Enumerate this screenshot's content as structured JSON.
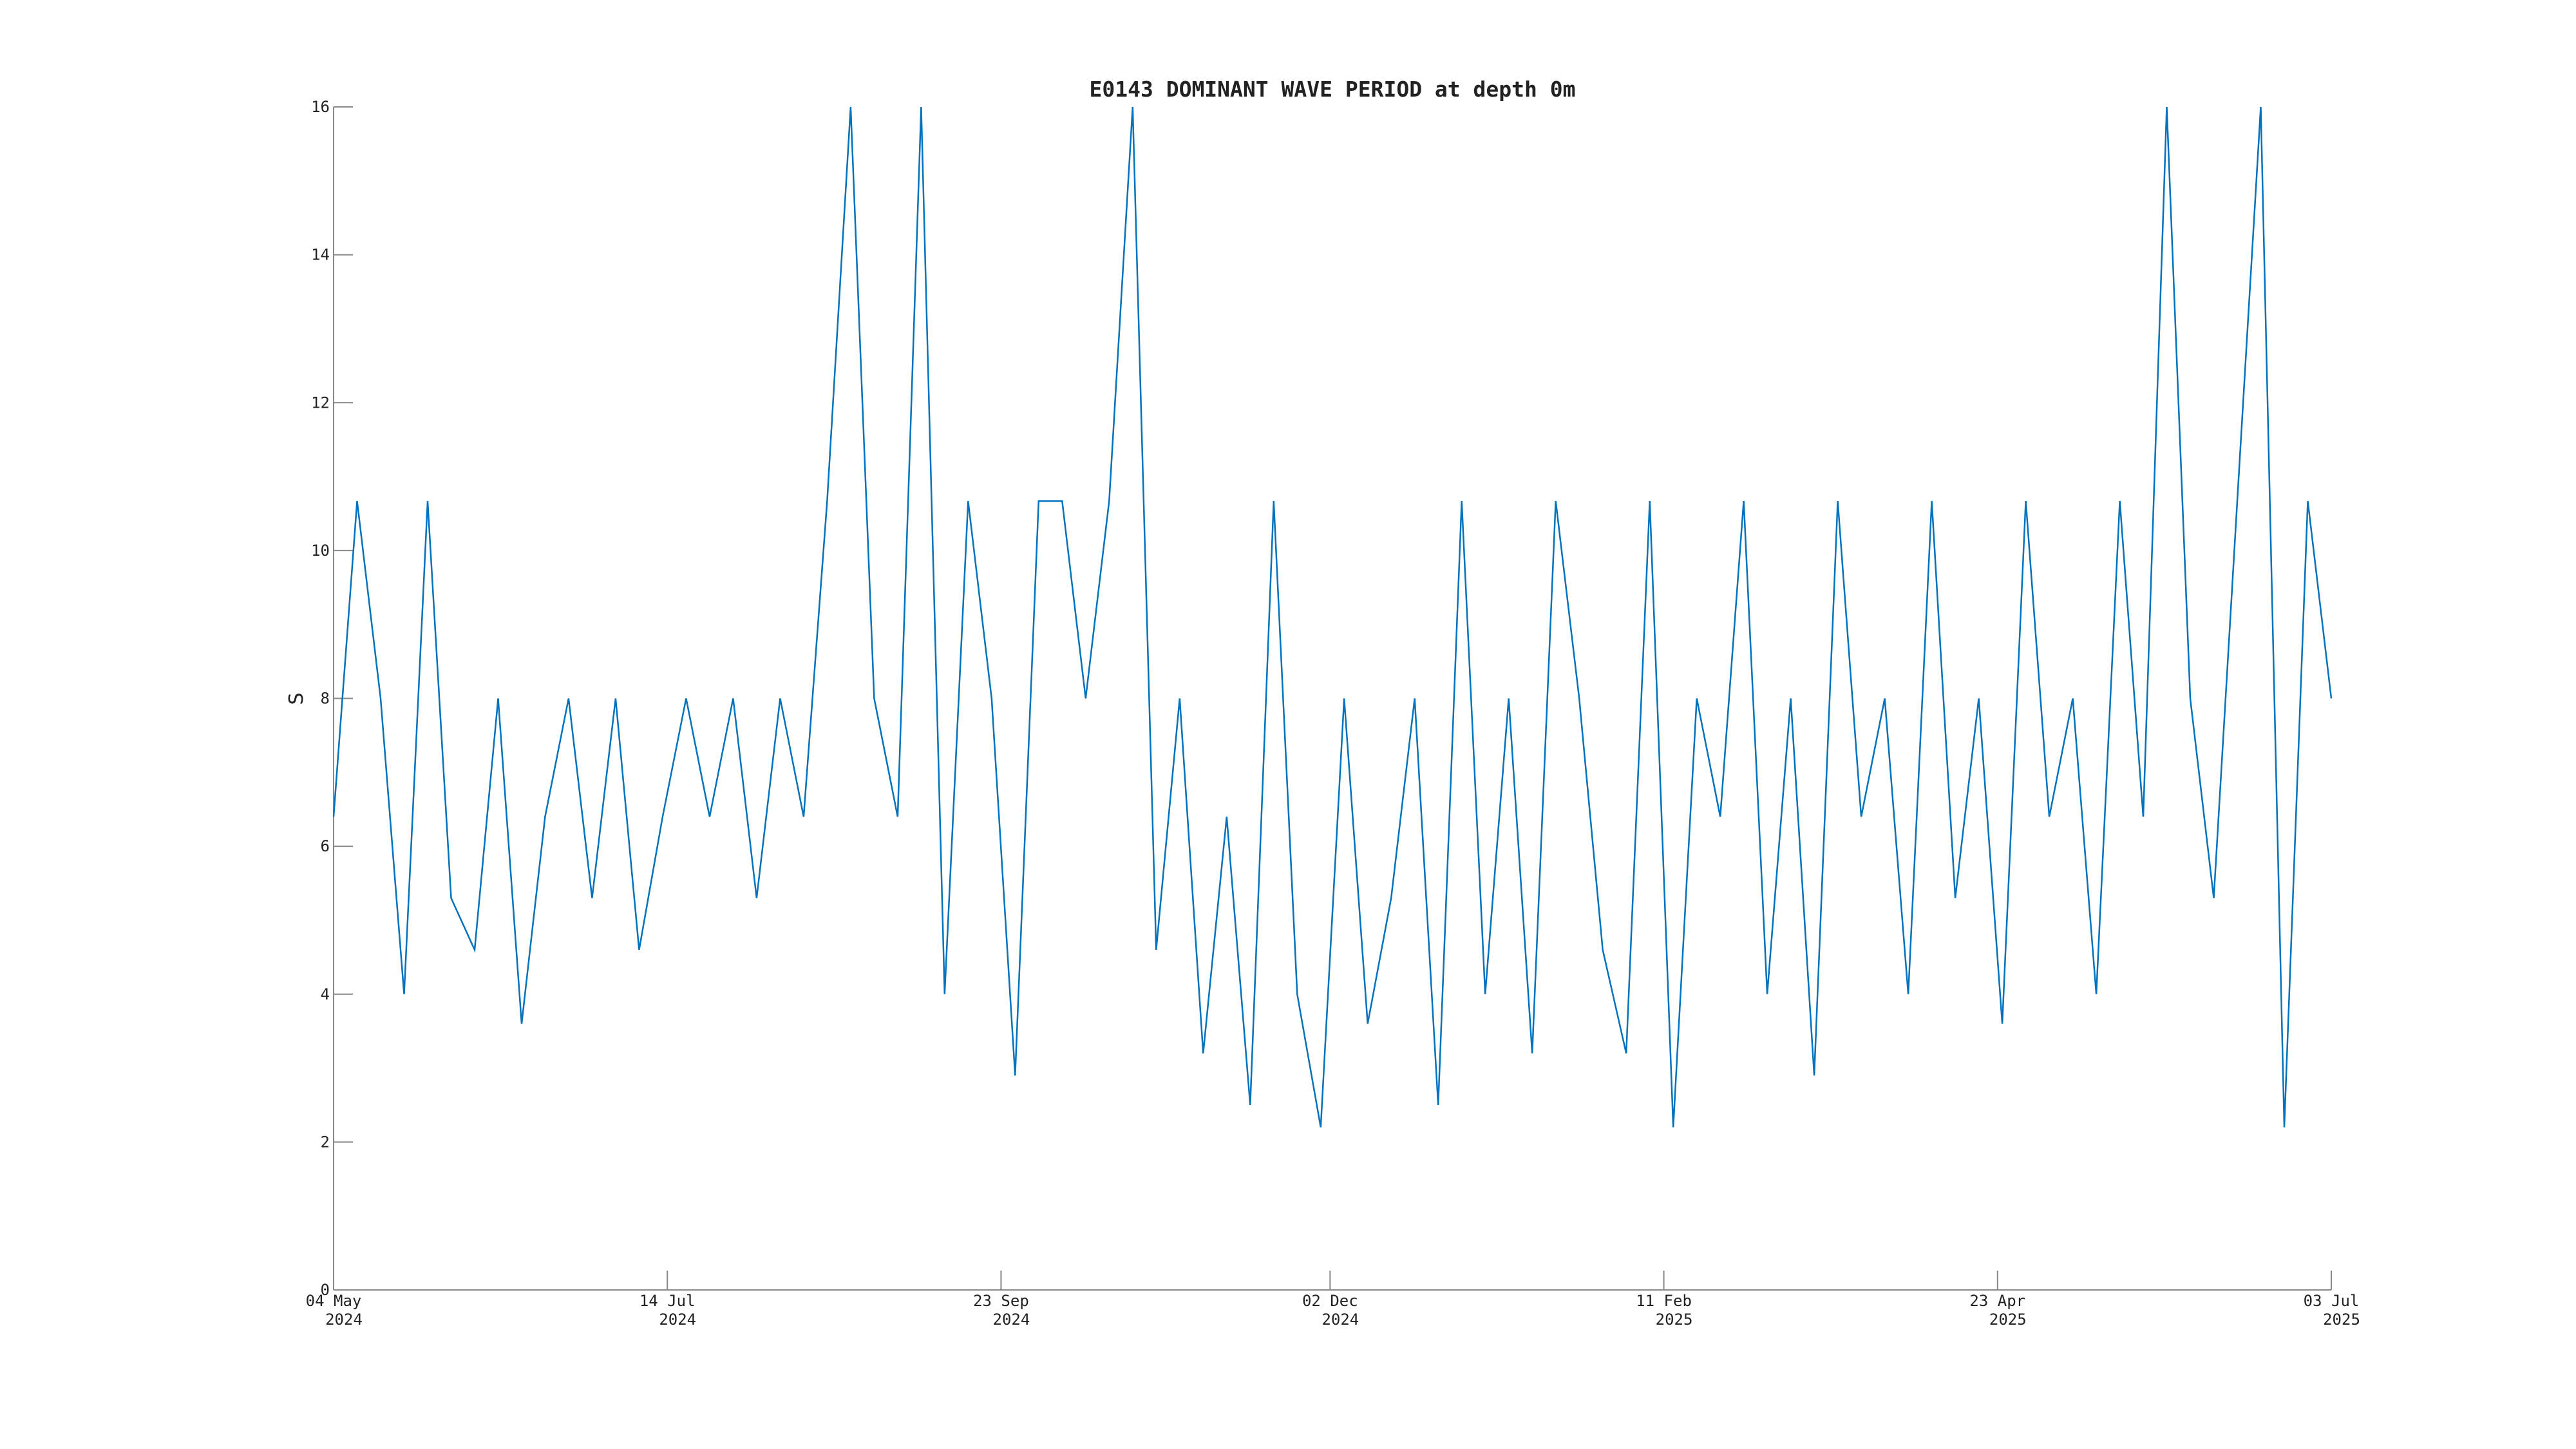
{
  "chart_data": {
    "type": "line",
    "title": "E0143 DOMINANT WAVE PERIOD at depth 0m",
    "y_label": "S",
    "x": [
      "2024-05-04",
      "2024-05-09",
      "2024-05-14",
      "2024-05-19",
      "2024-05-24",
      "2024-05-29",
      "2024-06-03",
      "2024-06-08",
      "2024-06-13",
      "2024-06-18",
      "2024-06-23",
      "2024-06-28",
      "2024-07-03",
      "2024-07-08",
      "2024-07-13",
      "2024-07-18",
      "2024-07-23",
      "2024-07-28",
      "2024-08-02",
      "2024-08-07",
      "2024-08-12",
      "2024-08-17",
      "2024-08-22",
      "2024-08-27",
      "2024-09-01",
      "2024-09-06",
      "2024-09-11",
      "2024-09-16",
      "2024-09-21",
      "2024-09-26",
      "2024-10-01",
      "2024-10-06",
      "2024-10-11",
      "2024-10-16",
      "2024-10-21",
      "2024-10-26",
      "2024-10-31",
      "2024-11-05",
      "2024-11-10",
      "2024-11-15",
      "2024-11-20",
      "2024-11-25",
      "2024-11-30",
      "2024-12-05",
      "2024-12-10",
      "2024-12-15",
      "2024-12-20",
      "2024-12-25",
      "2024-12-30",
      "2025-01-04",
      "2025-01-09",
      "2025-01-14",
      "2025-01-19",
      "2025-01-24",
      "2025-01-29",
      "2025-02-03",
      "2025-02-08",
      "2025-02-13",
      "2025-02-18",
      "2025-02-23",
      "2025-02-28",
      "2025-03-05",
      "2025-03-10",
      "2025-03-15",
      "2025-03-20",
      "2025-03-25",
      "2025-03-30",
      "2025-04-04",
      "2025-04-09",
      "2025-04-14",
      "2025-04-19",
      "2025-04-24",
      "2025-04-29",
      "2025-05-04",
      "2025-05-09",
      "2025-05-14",
      "2025-05-19",
      "2025-05-24",
      "2025-05-29",
      "2025-06-03",
      "2025-06-08",
      "2025-06-13",
      "2025-06-18",
      "2025-06-23",
      "2025-06-28",
      "2025-07-03"
    ],
    "values": [
      6.4,
      10.67,
      8,
      4,
      10.67,
      5.3,
      4.6,
      8,
      3.6,
      6.4,
      8,
      5.3,
      8,
      4.6,
      6.4,
      8,
      6.4,
      8,
      5.3,
      8,
      6.4,
      10.67,
      16,
      8,
      6.4,
      16,
      4,
      10.67,
      8,
      2.9,
      10.67,
      10.67,
      8,
      10.67,
      16,
      4.6,
      8,
      3.2,
      6.4,
      2.5,
      10.67,
      4,
      2.2,
      8,
      3.6,
      5.3,
      8,
      2.5,
      10.67,
      4,
      8,
      3.2,
      10.67,
      8,
      4.6,
      3.2,
      10.67,
      2.2,
      8,
      6.4,
      10.67,
      4,
      8,
      2.9,
      10.67,
      6.4,
      8,
      4,
      10.67,
      5.3,
      8,
      3.6,
      10.67,
      6.4,
      8,
      4,
      10.67,
      6.4,
      16,
      8,
      5.3,
      10.67,
      16,
      2.2,
      10.67,
      8
    ],
    "color": "#0072bd",
    "xlim": [
      "2024-05-04",
      "2025-07-03"
    ],
    "xticks": [
      {
        "value": "2024-05-04",
        "label": [
          "04 May",
          "2024"
        ]
      },
      {
        "value": "2024-07-14",
        "label": [
          "14 Jul",
          "2024"
        ]
      },
      {
        "value": "2024-09-23",
        "label": [
          "23 Sep",
          "2024"
        ]
      },
      {
        "value": "2024-12-02",
        "label": [
          "02 Dec",
          "2024"
        ]
      },
      {
        "value": "2025-02-11",
        "label": [
          "11 Feb",
          "2025"
        ]
      },
      {
        "value": "2025-04-23",
        "label": [
          "23 Apr",
          "2025"
        ]
      },
      {
        "value": "2025-07-03",
        "label": [
          "03 Jul",
          "2025"
        ]
      }
    ],
    "ylim": [
      0,
      16
    ],
    "yticks": [
      0,
      2,
      4,
      6,
      8,
      10,
      12,
      14,
      16
    ]
  }
}
